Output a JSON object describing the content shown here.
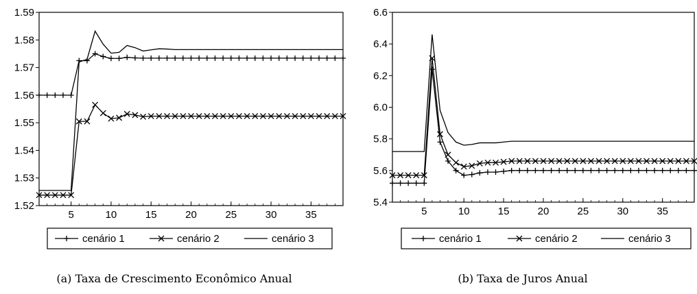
{
  "chart_data": [
    {
      "type": "line",
      "caption": "(a) Taxa de Crescimento Econômico Anual",
      "xlim": [
        1,
        39
      ],
      "ylim": [
        1.52,
        1.59
      ],
      "x_ticks": [
        5,
        10,
        15,
        20,
        25,
        30,
        35
      ],
      "y_ticks": [
        1.52,
        1.53,
        1.54,
        1.55,
        1.56,
        1.57,
        1.58,
        1.59
      ],
      "y_tick_labels": [
        "1.52",
        "1.53",
        "1.54",
        "1.55",
        "1.56",
        "1.57",
        "1.58",
        "1.59"
      ],
      "x": [
        1,
        2,
        3,
        4,
        5,
        6,
        7,
        8,
        9,
        10,
        11,
        12,
        13,
        14,
        15,
        16,
        17,
        18,
        19,
        20,
        21,
        22,
        23,
        24,
        25,
        26,
        27,
        28,
        29,
        30,
        31,
        32,
        33,
        34,
        35,
        36,
        37,
        38,
        39
      ],
      "legend": "bottom",
      "series": [
        {
          "name": "cenário 1",
          "marker": "plus",
          "values": [
            1.56,
            1.56,
            1.56,
            1.56,
            1.56,
            1.5725,
            1.5725,
            1.575,
            1.574,
            1.5733,
            1.5733,
            1.5737,
            1.5735,
            1.5734,
            1.5734,
            1.5734,
            1.5734,
            1.5734,
            1.5734,
            1.5734,
            1.5734,
            1.5734,
            1.5734,
            1.5734,
            1.5734,
            1.5734,
            1.5734,
            1.5734,
            1.5734,
            1.5734,
            1.5734,
            1.5734,
            1.5734,
            1.5734,
            1.5734,
            1.5734,
            1.5734,
            1.5734,
            1.5734
          ]
        },
        {
          "name": "cenário 2",
          "marker": "cross",
          "values": [
            1.5238,
            1.5238,
            1.5238,
            1.5238,
            1.5238,
            1.5505,
            1.5505,
            1.5565,
            1.5535,
            1.5515,
            1.5518,
            1.5532,
            1.5528,
            1.5522,
            1.5524,
            1.5524,
            1.5524,
            1.5524,
            1.5524,
            1.5524,
            1.5524,
            1.5524,
            1.5524,
            1.5524,
            1.5524,
            1.5524,
            1.5524,
            1.5524,
            1.5524,
            1.5524,
            1.5524,
            1.5524,
            1.5524,
            1.5524,
            1.5524,
            1.5524,
            1.5524,
            1.5524,
            1.5524
          ]
        },
        {
          "name": "cenário 3",
          "marker": "none",
          "values": [
            1.5255,
            1.5255,
            1.5255,
            1.5255,
            1.5255,
            1.572,
            1.573,
            1.5832,
            1.5785,
            1.5752,
            1.5755,
            1.578,
            1.5772,
            1.576,
            1.5764,
            1.5768,
            1.5767,
            1.5765,
            1.5765,
            1.5765,
            1.5765,
            1.5765,
            1.5765,
            1.5765,
            1.5765,
            1.5765,
            1.5765,
            1.5765,
            1.5765,
            1.5765,
            1.5765,
            1.5765,
            1.5765,
            1.5765,
            1.5765,
            1.5765,
            1.5765,
            1.5765,
            1.5765
          ]
        }
      ]
    },
    {
      "type": "line",
      "caption": "(b) Taxa de Juros Anual",
      "xlim": [
        1,
        39
      ],
      "ylim": [
        5.4,
        6.6
      ],
      "x_ticks": [
        5,
        10,
        15,
        20,
        25,
        30,
        35
      ],
      "y_ticks": [
        5.4,
        5.6,
        5.8,
        6.0,
        6.2,
        6.4,
        6.6
      ],
      "y_tick_labels": [
        "5.4",
        "5.6",
        "5.8",
        "6.0",
        "6.2",
        "6.4",
        "6.6"
      ],
      "x": [
        1,
        2,
        3,
        4,
        5,
        6,
        7,
        8,
        9,
        10,
        11,
        12,
        13,
        14,
        15,
        16,
        17,
        18,
        19,
        20,
        21,
        22,
        23,
        24,
        25,
        26,
        27,
        28,
        29,
        30,
        31,
        32,
        33,
        34,
        35,
        36,
        37,
        38,
        39
      ],
      "legend": "bottom",
      "series": [
        {
          "name": "cenário 1",
          "marker": "plus",
          "values": [
            5.52,
            5.52,
            5.52,
            5.52,
            5.52,
            6.24,
            5.78,
            5.66,
            5.6,
            5.57,
            5.575,
            5.585,
            5.59,
            5.59,
            5.595,
            5.6,
            5.6,
            5.6,
            5.6,
            5.6,
            5.6,
            5.6,
            5.6,
            5.6,
            5.6,
            5.6,
            5.6,
            5.6,
            5.6,
            5.6,
            5.6,
            5.6,
            5.6,
            5.6,
            5.6,
            5.6,
            5.6,
            5.6,
            5.6
          ]
        },
        {
          "name": "cenário 2",
          "marker": "cross",
          "values": [
            5.57,
            5.57,
            5.57,
            5.57,
            5.57,
            6.31,
            5.83,
            5.7,
            5.65,
            5.625,
            5.63,
            5.645,
            5.65,
            5.65,
            5.655,
            5.66,
            5.66,
            5.66,
            5.66,
            5.66,
            5.66,
            5.66,
            5.66,
            5.66,
            5.66,
            5.66,
            5.66,
            5.66,
            5.66,
            5.66,
            5.66,
            5.66,
            5.66,
            5.66,
            5.66,
            5.66,
            5.66,
            5.66,
            5.66
          ]
        },
        {
          "name": "cenário 3",
          "marker": "none",
          "values": [
            5.72,
            5.72,
            5.72,
            5.72,
            5.72,
            6.46,
            5.98,
            5.84,
            5.78,
            5.76,
            5.765,
            5.775,
            5.775,
            5.775,
            5.78,
            5.785,
            5.785,
            5.785,
            5.785,
            5.785,
            5.785,
            5.785,
            5.785,
            5.785,
            5.785,
            5.785,
            5.785,
            5.785,
            5.785,
            5.785,
            5.785,
            5.785,
            5.785,
            5.785,
            5.785,
            5.785,
            5.785,
            5.785,
            5.785
          ]
        }
      ]
    }
  ]
}
